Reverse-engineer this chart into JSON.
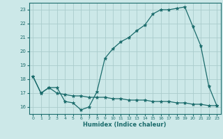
{
  "xlabel": "Humidex (Indice chaleur)",
  "background_color": "#cce8e8",
  "grid_color": "#aacccc",
  "line_color": "#1a6b6b",
  "xlim": [
    -0.5,
    23.5
  ],
  "ylim": [
    15.5,
    23.5
  ],
  "yticks": [
    16,
    17,
    18,
    19,
    20,
    21,
    22,
    23
  ],
  "xticks": [
    0,
    1,
    2,
    3,
    4,
    5,
    6,
    7,
    8,
    9,
    10,
    11,
    12,
    13,
    14,
    15,
    16,
    17,
    18,
    19,
    20,
    21,
    22,
    23
  ],
  "series1_x": [
    0,
    1,
    2,
    3,
    4,
    5,
    6,
    7,
    8,
    9,
    10,
    11,
    12,
    13,
    14,
    15,
    16,
    17,
    18,
    19,
    20,
    21,
    22,
    23
  ],
  "series1_y": [
    18.2,
    17.0,
    17.4,
    17.4,
    16.4,
    16.3,
    15.8,
    16.0,
    17.1,
    19.5,
    20.2,
    20.7,
    21.0,
    21.5,
    21.9,
    22.7,
    23.0,
    23.0,
    23.1,
    23.2,
    21.8,
    20.4,
    17.5,
    16.1
  ],
  "series2_x": [
    0,
    1,
    2,
    3,
    4,
    5,
    6,
    7,
    8,
    9,
    10,
    11,
    12,
    13,
    14,
    15,
    16,
    17,
    18,
    19,
    20,
    21,
    22,
    23
  ],
  "series2_y": [
    18.2,
    17.0,
    17.4,
    17.0,
    16.9,
    16.8,
    16.8,
    16.7,
    16.7,
    16.7,
    16.6,
    16.6,
    16.5,
    16.5,
    16.5,
    16.4,
    16.4,
    16.4,
    16.3,
    16.3,
    16.2,
    16.2,
    16.1,
    16.1
  ]
}
